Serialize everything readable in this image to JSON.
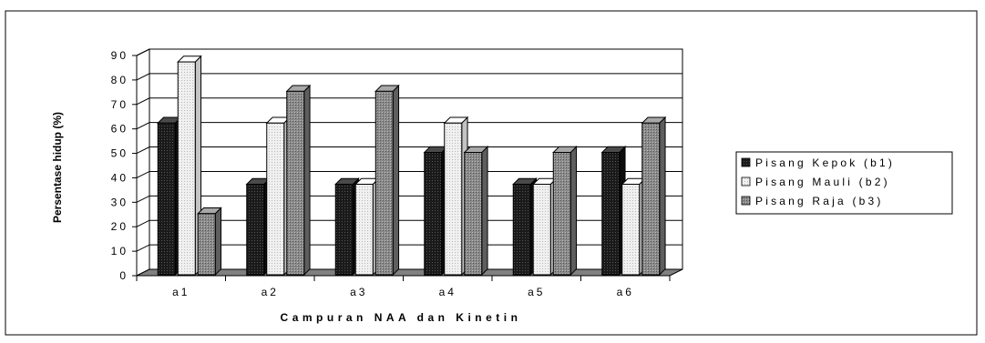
{
  "chart_data": {
    "type": "bar",
    "title": "",
    "xlabel": "Campuran NAA dan Kinetin",
    "ylabel": "Persentase hidup (%)",
    "ylim": [
      0,
      90
    ],
    "y_ticks": [
      "0",
      "10",
      "20",
      "30",
      "40",
      "50",
      "60",
      "70",
      "80",
      "90"
    ],
    "categories": [
      "a1",
      "a2",
      "a3",
      "a4",
      "a5",
      "a6"
    ],
    "series": [
      {
        "name": "Pisang Kepok (b1)",
        "values": [
          62,
          37,
          37,
          50,
          37,
          50
        ],
        "color": "#222222"
      },
      {
        "name": "Pisang Mauli (b2)",
        "values": [
          87,
          62,
          37,
          62,
          37,
          37
        ],
        "color": "#e8e8e8"
      },
      {
        "name": "Pisang Raja (b3)",
        "values": [
          25,
          75,
          75,
          50,
          50,
          62
        ],
        "color": "#808080"
      }
    ],
    "grid": true,
    "legend_position": "right",
    "style": "3d-bars"
  }
}
